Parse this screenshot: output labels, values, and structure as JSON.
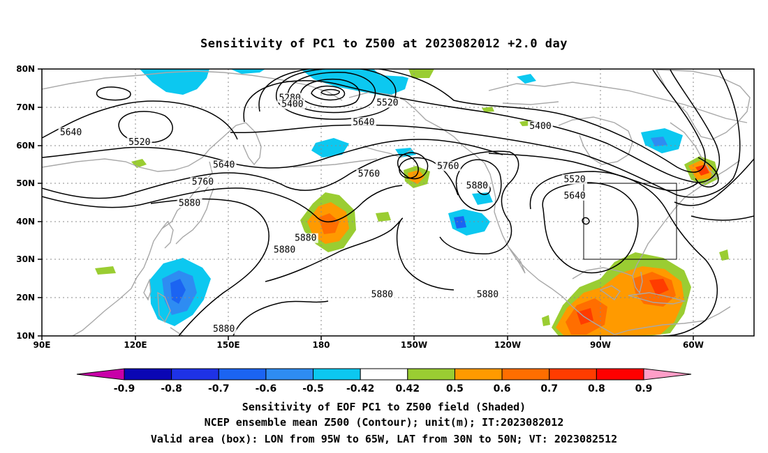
{
  "title": "Sensitivity of PC1 to Z500 at 2023082012 +2.0 day",
  "lat_ticks": [
    "80N",
    "70N",
    "60N",
    "50N",
    "40N",
    "30N",
    "20N",
    "10N"
  ],
  "lon_ticks": [
    "90E",
    "120E",
    "150E",
    "180",
    "150W",
    "120W",
    "90W",
    "60W"
  ],
  "contour_labels": [
    {
      "id": "c5640a",
      "text": "5640",
      "lon": 101,
      "lat": 62.8
    },
    {
      "id": "c5520a",
      "text": "5520",
      "lon": 127,
      "lat": 60.3
    },
    {
      "id": "c5280",
      "text": "5280",
      "lon": 184,
      "lat": 71.9
    },
    {
      "id": "c5400a",
      "text": "5400",
      "lon": 185,
      "lat": 70.2
    },
    {
      "id": "c5520b",
      "text": "5520",
      "lon": 221,
      "lat": 70.6
    },
    {
      "id": "c5640b",
      "text": "5640",
      "lon": 212,
      "lat": 65.5
    },
    {
      "id": "c5400b",
      "text": "5400",
      "lon": 279,
      "lat": 64.5
    },
    {
      "id": "c5640c",
      "text": "5640",
      "lon": 159,
      "lat": 54.3
    },
    {
      "id": "c5760a",
      "text": "5760",
      "lon": 151,
      "lat": 49.8
    },
    {
      "id": "c5880a",
      "text": "5880",
      "lon": 146,
      "lat": 44.3
    },
    {
      "id": "c5760b",
      "text": "5760",
      "lon": 214,
      "lat": 51.9
    },
    {
      "id": "c5760c",
      "text": "5760",
      "lon": 244,
      "lat": 54.0
    },
    {
      "id": "c5880b",
      "text": "5880",
      "lon": 255,
      "lat": 48.8
    },
    {
      "id": "c5520c",
      "text": "5520",
      "lon": 292,
      "lat": 50.5
    },
    {
      "id": "c5640d",
      "text": "5640",
      "lon": 292,
      "lat": 46.2
    },
    {
      "id": "c5880c",
      "text": "5880",
      "lon": 190,
      "lat": 35.1
    },
    {
      "id": "c5880d",
      "text": "5880",
      "lon": 182,
      "lat": 32.0
    },
    {
      "id": "c5880e",
      "text": "5880",
      "lon": 219,
      "lat": 20.3
    },
    {
      "id": "c5880f",
      "text": "5880",
      "lon": 259,
      "lat": 20.3
    },
    {
      "id": "c5880g",
      "text": "5880",
      "lon": 159,
      "lat": 11.3
    }
  ],
  "valid_box": {
    "lon_min": 265,
    "lon_max": 295,
    "lat_min": 30,
    "lat_max": 50
  },
  "colorbar": {
    "tick_labels": [
      "-0.9",
      "-0.8",
      "-0.7",
      "-0.6",
      "-0.5",
      "-0.42",
      "0.42",
      "0.5",
      "0.6",
      "0.7",
      "0.8",
      "0.9"
    ],
    "colors": [
      "#c800a8",
      "#0a06b4",
      "#1e32e6",
      "#1b64f2",
      "#2e8cf2",
      "#0cc8f0",
      "#ffffff",
      "#9acd32",
      "#ff9a00",
      "#ff6e00",
      "#ff3c00",
      "#ff0000",
      "#ff9ec8"
    ]
  },
  "captions": [
    "Sensitivity of EOF PC1 to Z500 field (Shaded)",
    "NCEP ensemble mean Z500 (Contour); unit(m); IT:2023082012",
    "Valid area (box): LON from 95W to 65W, LAT from 30N to 50N; VT: 2023082512"
  ]
}
